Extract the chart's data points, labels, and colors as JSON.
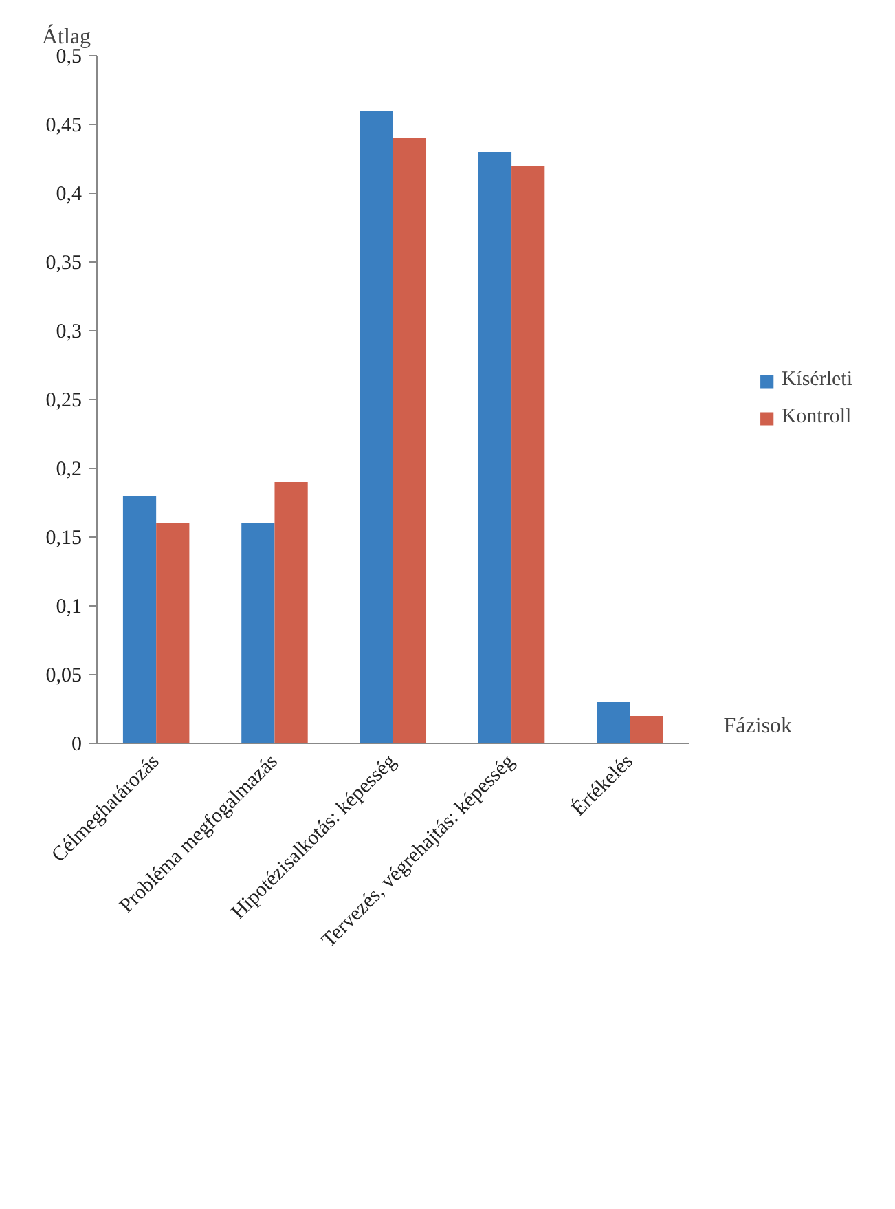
{
  "chart_data": {
    "type": "bar",
    "ylabel": "Átlag",
    "xlabel": "Fázisok",
    "categories": [
      "Célmeghatározás",
      "Probléma megfogalmazás",
      "Hipotézisalkotás: képesség",
      "Tervezés, végrehajtás: képesség",
      "Értékelés"
    ],
    "series": [
      {
        "name": "Kísérleti",
        "color": "#3a7fc1",
        "values": [
          0.18,
          0.16,
          0.46,
          0.43,
          0.03
        ]
      },
      {
        "name": "Kontroll",
        "color": "#d0604c",
        "values": [
          0.16,
          0.19,
          0.44,
          0.42,
          0.02
        ]
      }
    ],
    "ylim": [
      0,
      0.5
    ],
    "yticks": [
      0,
      {
        "value": 0.05,
        "label": "0,05"
      },
      {
        "value": 0.1,
        "label": "0,1"
      },
      {
        "value": 0.15,
        "label": "0,15"
      },
      {
        "value": 0.2,
        "label": "0,2"
      },
      {
        "value": 0.25,
        "label": "0,25"
      },
      {
        "value": 0.3,
        "label": "0,3"
      },
      {
        "value": 0.35,
        "label": "0,35"
      },
      {
        "value": 0.4,
        "label": "0,4"
      },
      {
        "value": 0.45,
        "label": "0,45"
      },
      {
        "value": 0.5,
        "label": "0,5"
      }
    ],
    "grid": false,
    "legend": "right"
  }
}
